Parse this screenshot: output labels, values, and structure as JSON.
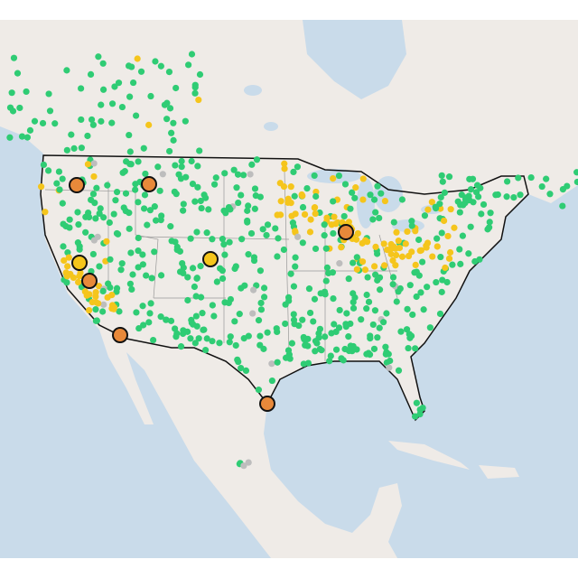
{
  "map": {
    "marker_colors": [
      "#2fcc74",
      "#f5c51c",
      "#e8893a",
      "#bdbdbd"
    ],
    "land_color": "#efebe7",
    "water_color": "#c9dbea",
    "border_color": "#111111"
  }
}
